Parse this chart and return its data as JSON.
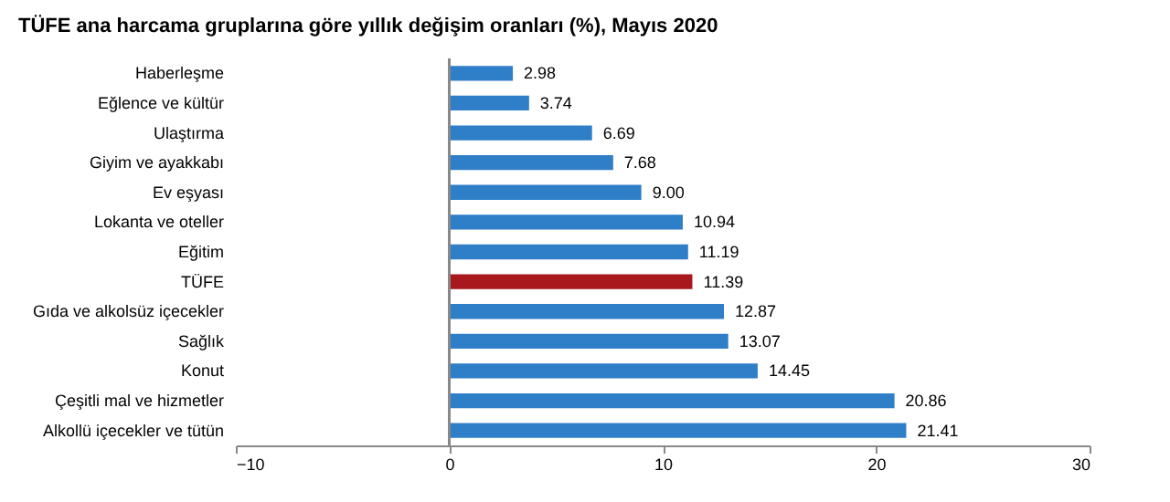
{
  "chart_data": {
    "type": "bar",
    "orientation": "horizontal",
    "title": "TÜFE ana harcama gruplarına göre yıllık değişim oranları (%), Mayıs 2020",
    "categories": [
      "Haberleşme",
      "Eğlence ve kültür",
      "Ulaştırma",
      "Giyim ve ayakkabı",
      "Ev eşyası",
      "Lokanta ve oteller",
      "Eğitim",
      "TÜFE",
      "Gıda ve alkolsüz içecekler",
      "Sağlık",
      "Konut",
      "Çeşitli mal ve hizmetler",
      "Alkollü içecekler ve tütün"
    ],
    "values": [
      2.98,
      3.74,
      6.69,
      7.68,
      9.0,
      10.94,
      11.19,
      11.39,
      12.87,
      13.07,
      14.45,
      20.86,
      21.41
    ],
    "value_labels": [
      "2.98",
      "3.74",
      "6.69",
      "7.68",
      "9.00",
      "10.94",
      "11.19",
      "11.39",
      "12.87",
      "13.07",
      "14.45",
      "20.86",
      "21.41"
    ],
    "colors": [
      "#2e7ec8",
      "#2e7ec8",
      "#2e7ec8",
      "#2e7ec8",
      "#2e7ec8",
      "#2e7ec8",
      "#2e7ec8",
      "#a8181c",
      "#2e7ec8",
      "#2e7ec8",
      "#2e7ec8",
      "#2e7ec8",
      "#2e7ec8"
    ],
    "xlim": [
      -10,
      30
    ],
    "xticks": [
      -10,
      0,
      10,
      20,
      30
    ]
  }
}
